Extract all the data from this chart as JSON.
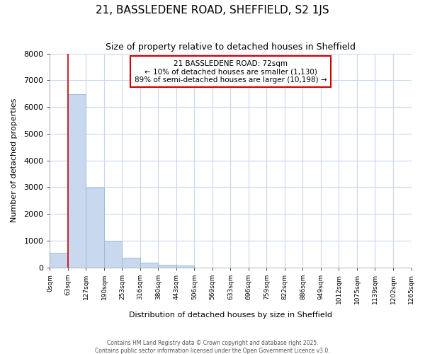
{
  "title": "21, BASSLEDENE ROAD, SHEFFIELD, S2 1JS",
  "subtitle": "Size of property relative to detached houses in Sheffield",
  "xlabel": "Distribution of detached houses by size in Sheffield",
  "ylabel": "Number of detached properties",
  "bar_color": "#c8d8ee",
  "bar_edge_color": "#9ab8d8",
  "bg_color": "#ffffff",
  "plot_bg_color": "#ffffff",
  "grid_color": "#c8d8f0",
  "red_line_x": 1,
  "annotation_text": "21 BASSLEDENE ROAD: 72sqm\n← 10% of detached houses are smaller (1,130)\n89% of semi-detached houses are larger (10,198) →",
  "bin_labels": [
    "0sqm",
    "63sqm",
    "127sqm",
    "190sqm",
    "253sqm",
    "316sqm",
    "380sqm",
    "443sqm",
    "506sqm",
    "569sqm",
    "633sqm",
    "696sqm",
    "759sqm",
    "822sqm",
    "886sqm",
    "949sqm",
    "1012sqm",
    "1075sqm",
    "1139sqm",
    "1202sqm",
    "1265sqm"
  ],
  "bar_values": [
    560,
    6480,
    2980,
    980,
    370,
    175,
    95,
    65,
    0,
    0,
    0,
    0,
    0,
    0,
    0,
    0,
    0,
    0,
    0,
    0
  ],
  "ylim": [
    0,
    8000
  ],
  "yticks": [
    0,
    1000,
    2000,
    3000,
    4000,
    5000,
    6000,
    7000,
    8000
  ],
  "footer": "Contains HM Land Registry data © Crown copyright and database right 2025.\nContains public sector information licensed under the Open Government Licence v3.0."
}
